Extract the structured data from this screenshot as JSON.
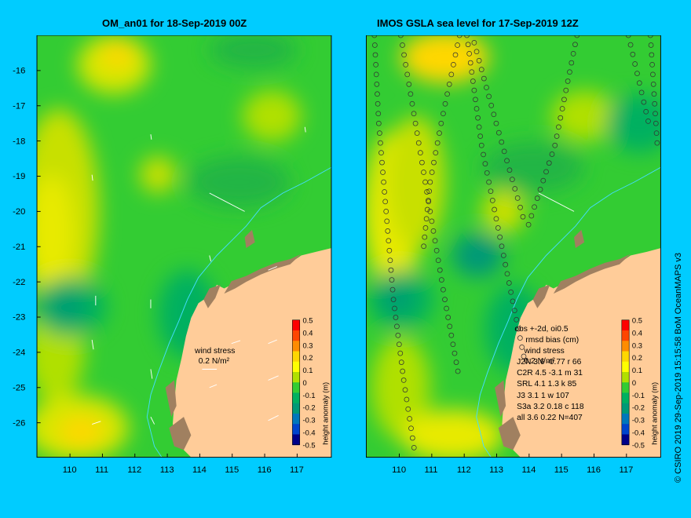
{
  "left_panel": {
    "title": "OM_an01 for 18-Sep-2019 00Z"
  },
  "right_panel": {
    "title": "IMOS GSLA sea level  for 17-Sep-2019 12Z"
  },
  "axes": {
    "lat_ticks": [
      "-16",
      "-17",
      "-18",
      "-19",
      "-20",
      "-21",
      "-22",
      "-23",
      "-24",
      "-25",
      "-26"
    ],
    "lon_ticks": [
      "110",
      "111",
      "112",
      "113",
      "114",
      "115",
      "116",
      "117"
    ]
  },
  "colorbar": {
    "label": "height anomaly (m)",
    "ticks": [
      "0.5",
      "0.4",
      "0.3",
      "0.2",
      "0.1",
      "0",
      "-0.1",
      "-0.2",
      "-0.3",
      "-0.4",
      "-0.5"
    ],
    "colors": [
      "#ff0000",
      "#ff4500",
      "#ff8c00",
      "#ffd700",
      "#ffff00",
      "#b0e000",
      "#33cc33",
      "#00b060",
      "#009977",
      "#0077bb",
      "#0044cc",
      "#000088"
    ]
  },
  "wind_stress": {
    "label": "wind stress",
    "value": "0.2 N/m²"
  },
  "obs_legend": {
    "header1": "obs +-2d, oi0.5",
    "header2": "rmsd  bias (cm)",
    "rows": [
      "J2N  3.6 -0.77 r 66",
      "C2R   4.5 -3.1 m 31",
      "SRL   4.1 1.3 k 85",
      "J3     3.1 1 w 107",
      "S3a   3.2 0.18 c 118",
      "all   3.6 0.22 N=407"
    ]
  },
  "credit": "© CSIRO 2019   29-Sep-2019 15:15:58 BoM OceanMAPS v3",
  "colors": {
    "background": "#00ccff",
    "land": "#ffcc99",
    "ocean_base": "#33cc33"
  }
}
